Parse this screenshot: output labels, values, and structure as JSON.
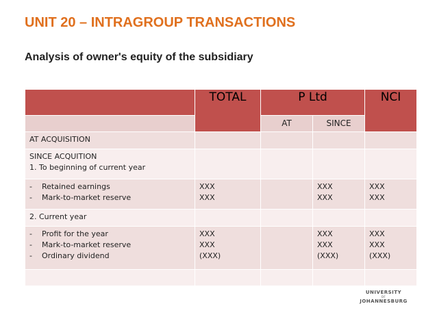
{
  "slide": {
    "title": "UNIT 20 – INTRAGROUP TRANSACTIONS",
    "subtitle": "Analysis of owner's equity of the subsidiary"
  },
  "table": {
    "headers": {
      "total": "TOTAL",
      "p_ltd": "P Ltd",
      "at": "AT",
      "since": "SINCE",
      "nci": "NCI"
    },
    "rows": {
      "at_acquisition": "AT ACQUISITION",
      "since_acquisition": "SINCE ACQUITION",
      "to_beginning": "1. To beginning of current year",
      "retained_earnings": "Retained earnings",
      "mtm_reserve_1": "Mark-to-market reserve",
      "current_year": "2. Current year",
      "profit_for_year": "Profit for the year",
      "mtm_reserve_2": "Mark-to-market reserve",
      "ordinary_dividend": "Ordinary dividend"
    },
    "dash": "-",
    "value_xxx": "XXX",
    "value_neg_xxx": "(XXX)"
  },
  "logo": {
    "line1": "UNIVERSITY",
    "line2": "OF",
    "line3": "JOHANNESBURG",
    "color": "#555555"
  },
  "colors": {
    "title": "#e0701e",
    "header_bg": "#c0504d",
    "header_sub_bg": "#e8cfce",
    "row_odd": "#efdedd",
    "row_even": "#f8eeee"
  }
}
